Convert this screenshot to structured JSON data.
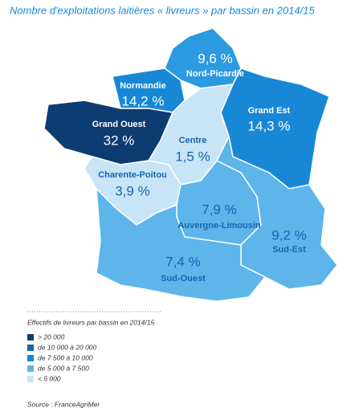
{
  "map": {
    "title": "Nombre d'exploitations laitières « livreurs » par bassin en 2014/15",
    "regions": [
      {
        "name": "Nord-Picardie",
        "value": "9,6 %",
        "color": "#2c9ae0"
      },
      {
        "name": "Normandie",
        "value": "14,2 %",
        "color": "#1888d6"
      },
      {
        "name": "Grand Est",
        "value": "14,3 %",
        "color": "#1888d6"
      },
      {
        "name": "Grand Ouest",
        "value": "32 %",
        "color": "#0d3c73"
      },
      {
        "name": "Centre",
        "value": "1,5 %",
        "color": "#c8e5f7"
      },
      {
        "name": "Charente-Poitou",
        "value": "3,9 %",
        "color": "#c8e5f7"
      },
      {
        "name": "Auvergne-Limousin",
        "value": "7,9 %",
        "color": "#5db5ea"
      },
      {
        "name": "Sud-Est",
        "value": "9,2 %",
        "color": "#5db5ea"
      },
      {
        "name": "Sud-Ouest",
        "value": "7,4 %",
        "color": "#5db5ea"
      }
    ],
    "legend": {
      "title": "Effectifs de livreurs par bassin en 2014/15",
      "items": [
        {
          "label": "> 20 000",
          "color": "#0d3c73"
        },
        {
          "label": "de 10 000 à 20 000",
          "color": "#1565b0"
        },
        {
          "label": "de 7 500 à 10 000",
          "color": "#1888d6"
        },
        {
          "label": "de 5 000 à 7 500",
          "color": "#5db5ea"
        },
        {
          "label": "< 5 000",
          "color": "#c8e5f7"
        }
      ]
    },
    "source": "Source : FranceAgriMer"
  }
}
